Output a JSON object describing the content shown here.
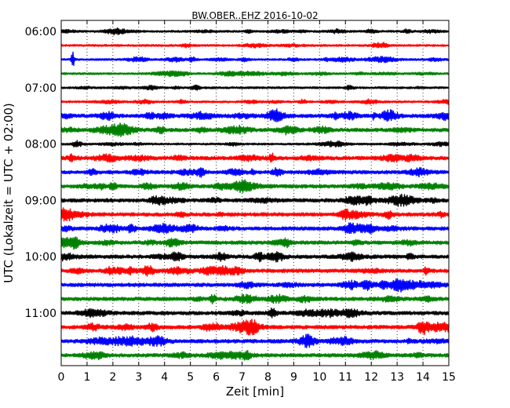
{
  "chart_data": {
    "type": "line",
    "title": "BW.OBER..EHZ 2016-10-02",
    "xlabel": "Zeit  [min]",
    "ylabel": "UTC (Lokalzeit = UTC + 02:00)",
    "xlim": [
      0,
      15
    ],
    "x_ticks": [
      0,
      1,
      2,
      3,
      4,
      5,
      6,
      7,
      8,
      9,
      10,
      11,
      12,
      13,
      14,
      15
    ],
    "x_tick_labels": [
      "0",
      "1",
      "2",
      "3",
      "4",
      "5",
      "6",
      "7",
      "8",
      "9",
      "10",
      "11",
      "12",
      "13",
      "14",
      "15"
    ],
    "y_tick_labels": [
      "06:00",
      "07:00",
      "08:00",
      "09:00",
      "10:00",
      "11:00"
    ],
    "grid": "vertical dotted at each minute",
    "trace_colors": [
      "#000000",
      "#ff0000",
      "#0000ff",
      "#008000"
    ],
    "traces": [
      {
        "start": "06:00",
        "color": "#000000",
        "amplitude": "low",
        "events": []
      },
      {
        "start": "06:15",
        "color": "#ff0000",
        "amplitude": "low",
        "events": []
      },
      {
        "start": "06:30",
        "color": "#0000ff",
        "amplitude": "low",
        "events": [
          {
            "minute": 0.45,
            "magnitude": "large"
          }
        ]
      },
      {
        "start": "06:45",
        "color": "#008000",
        "amplitude": "low",
        "events": []
      },
      {
        "start": "07:00",
        "color": "#000000",
        "amplitude": "low",
        "events": []
      },
      {
        "start": "07:15",
        "color": "#ff0000",
        "amplitude": "low",
        "events": []
      },
      {
        "start": "07:30",
        "color": "#0000ff",
        "amplitude": "medium",
        "events": [
          {
            "minute": 12.1,
            "magnitude": "medium"
          }
        ]
      },
      {
        "start": "07:45",
        "color": "#008000",
        "amplitude": "medium",
        "events": []
      },
      {
        "start": "08:00",
        "color": "#000000",
        "amplitude": "low",
        "events": []
      },
      {
        "start": "08:15",
        "color": "#ff0000",
        "amplitude": "medium",
        "events": []
      },
      {
        "start": "08:30",
        "color": "#0000ff",
        "amplitude": "medium",
        "events": [
          {
            "minute": 7.4,
            "magnitude": "medium"
          }
        ]
      },
      {
        "start": "08:45",
        "color": "#008000",
        "amplitude": "medium",
        "events": []
      },
      {
        "start": "09:00",
        "color": "#000000",
        "amplitude": "medium",
        "events": []
      },
      {
        "start": "09:15",
        "color": "#ff0000",
        "amplitude": "medium",
        "events": []
      },
      {
        "start": "09:30",
        "color": "#0000ff",
        "amplitude": "medium",
        "events": [
          {
            "minute": 12.0,
            "magnitude": "medium"
          }
        ]
      },
      {
        "start": "09:45",
        "color": "#008000",
        "amplitude": "medium",
        "events": []
      },
      {
        "start": "10:00",
        "color": "#000000",
        "amplitude": "medium",
        "events": []
      },
      {
        "start": "10:15",
        "color": "#ff0000",
        "amplitude": "medium",
        "events": []
      },
      {
        "start": "10:30",
        "color": "#0000ff",
        "amplitude": "medium",
        "events": []
      },
      {
        "start": "10:45",
        "color": "#008000",
        "amplitude": "medium",
        "events": []
      },
      {
        "start": "11:00",
        "color": "#000000",
        "amplitude": "medium",
        "events": []
      },
      {
        "start": "11:15",
        "color": "#ff0000",
        "amplitude": "medium",
        "events": []
      },
      {
        "start": "11:30",
        "color": "#0000ff",
        "amplitude": "medium",
        "events": []
      },
      {
        "start": "11:45",
        "color": "#008000",
        "amplitude": "medium",
        "events": []
      }
    ]
  }
}
